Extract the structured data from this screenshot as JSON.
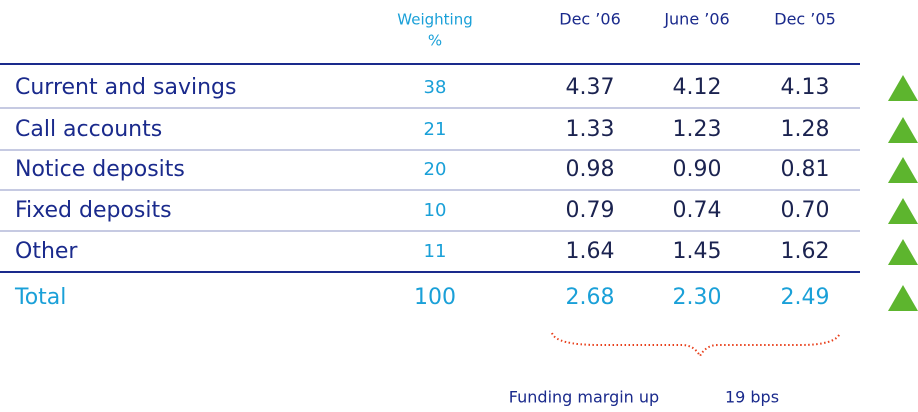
{
  "header": {
    "weighting": [
      "Weighting",
      "%"
    ],
    "periods": [
      "Dec ’06",
      "June ’06",
      "Dec ’05"
    ]
  },
  "table": {
    "rows": [
      [
        "Current and savings",
        "38",
        "4.37",
        "4.12",
        "4.13"
      ],
      [
        "Call accounts",
        "21",
        "1.33",
        "1.23",
        "1.28"
      ],
      [
        "Notice deposits",
        "20",
        "0.98",
        "0.90",
        "0.81"
      ],
      [
        "Fixed deposits",
        "10",
        "0.79",
        "0.74",
        "0.70"
      ],
      [
        "Other",
        "11",
        "1.64",
        "1.45",
        "1.62"
      ]
    ],
    "total": [
      "Total",
      "100",
      "2.68",
      "2.30",
      "2.49"
    ]
  },
  "footer": {
    "text": "Funding  margin up",
    "amount": "19 bps"
  }
}
